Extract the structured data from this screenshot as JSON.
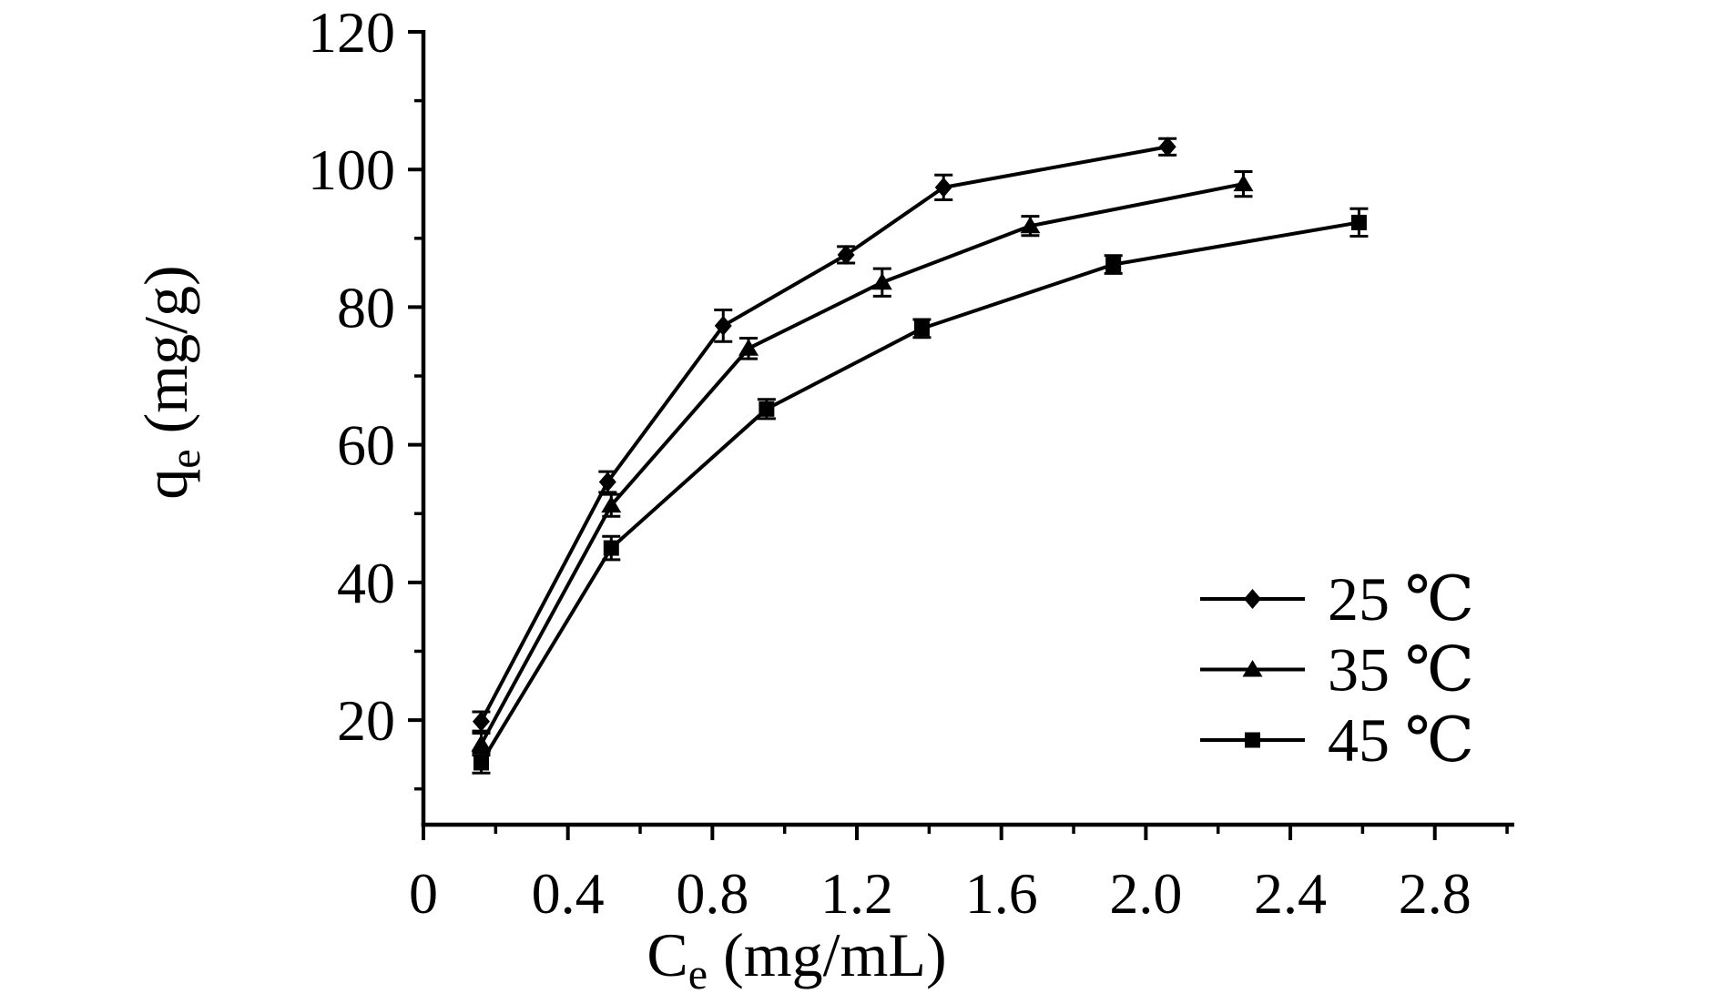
{
  "background": "#ffffff",
  "foreground": "#000000",
  "chart_data": {
    "type": "line",
    "title": "",
    "xlabel": {
      "main": "C",
      "sub": "e",
      "rest": " (mg/mL)"
    },
    "ylabel": {
      "main": "q",
      "sub": "e",
      "rest": " (mg/g)"
    },
    "xlim": [
      0,
      3.02
    ],
    "ylim": [
      4.8,
      120
    ],
    "grid": false,
    "legend_position": "inside-right",
    "x_major_ticks": [
      0,
      0.4,
      0.8,
      1.2,
      1.6,
      2.0,
      2.4,
      2.8
    ],
    "x_major_labels": [
      "0",
      "0.4",
      "0.8",
      "1.2",
      "1.6",
      "2.0",
      "2.4",
      "2.8"
    ],
    "x_minor_ticks": [
      0.2,
      0.6,
      1.0,
      1.4,
      1.8,
      2.2,
      2.6,
      3.0
    ],
    "y_major_ticks": [
      20,
      40,
      60,
      80,
      100,
      120
    ],
    "y_major_labels": [
      "20",
      "40",
      "60",
      "80",
      "100",
      "120"
    ],
    "y_minor_ticks": [
      10,
      30,
      50,
      70,
      90,
      110
    ],
    "series": [
      {
        "name": "25 ℃",
        "marker": "diamond",
        "color": "#000000",
        "x": [
          0.16,
          0.51,
          0.83,
          1.17,
          1.44,
          2.06
        ],
        "y": [
          19.8,
          54.6,
          77.3,
          87.6,
          97.4,
          103.3
        ],
        "err": [
          1.4,
          1.5,
          2.3,
          1.2,
          1.8,
          1.2
        ]
      },
      {
        "name": "35 ℃",
        "marker": "triangle",
        "color": "#000000",
        "x": [
          0.16,
          0.52,
          0.9,
          1.27,
          1.68,
          2.27
        ],
        "y": [
          16.5,
          51.2,
          74.0,
          83.6,
          91.8,
          97.9
        ],
        "err": [
          1.6,
          1.6,
          1.5,
          2.0,
          1.4,
          1.8
        ]
      },
      {
        "name": "45 ℃",
        "marker": "square",
        "color": "#000000",
        "x": [
          0.16,
          0.52,
          0.95,
          1.38,
          1.91,
          2.59
        ],
        "y": [
          13.8,
          45.0,
          65.2,
          76.9,
          86.2,
          92.3
        ],
        "err": [
          1.5,
          1.7,
          1.4,
          1.3,
          1.3,
          2.0
        ]
      }
    ]
  }
}
